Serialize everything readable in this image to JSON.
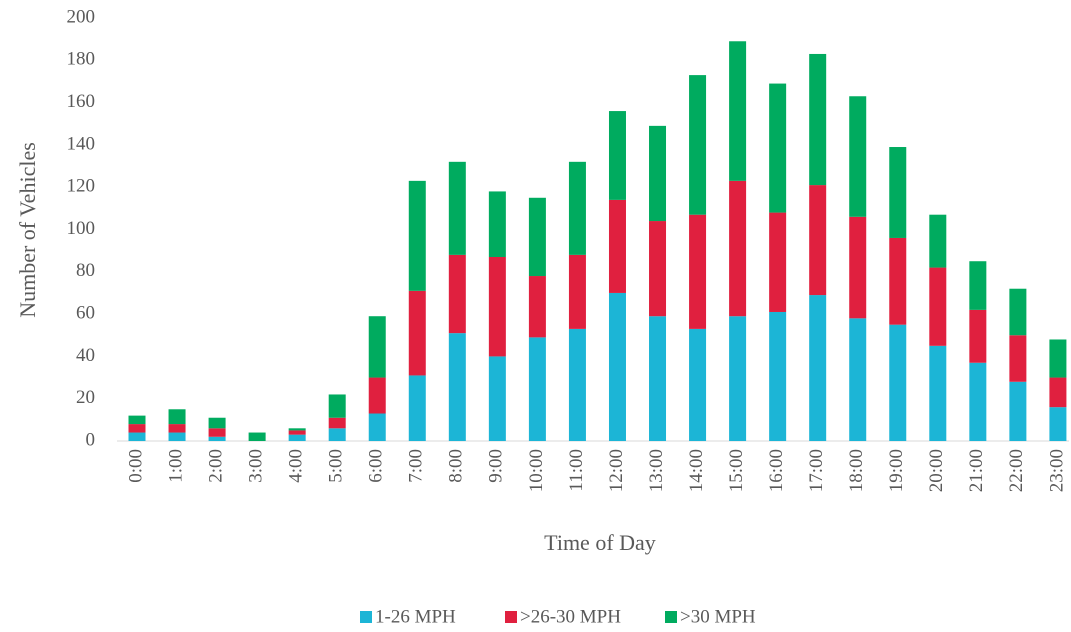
{
  "chart_data": {
    "type": "stacked_bar",
    "x_label": "Time of Day",
    "y_label": "Number of Vehicles",
    "categories": [
      "0:00",
      "1:00",
      "2:00",
      "3:00",
      "4:00",
      "5:00",
      "6:00",
      "7:00",
      "8:00",
      "9:00",
      "10:00",
      "11:00",
      "12:00",
      "13:00",
      "14:00",
      "15:00",
      "16:00",
      "17:00",
      "18:00",
      "19:00",
      "20:00",
      "21:00",
      "22:00",
      "23:00"
    ],
    "series": [
      {
        "name": "1-26 MPH",
        "color": "#1cb5d6",
        "values": [
          4,
          4,
          2,
          0,
          3,
          6,
          13,
          31,
          51,
          40,
          49,
          53,
          70,
          59,
          53,
          59,
          61,
          69,
          58,
          55,
          45,
          37,
          28,
          16
        ]
      },
      {
        "name": ">26-30 MPH",
        "color": "#e0203f",
        "values": [
          4,
          4,
          4,
          0,
          2,
          5,
          17,
          40,
          37,
          47,
          29,
          35,
          44,
          45,
          54,
          64,
          47,
          52,
          48,
          41,
          37,
          25,
          22,
          14
        ]
      },
      {
        "name": ">30 MPH",
        "color": "#00ab5f",
        "values": [
          4,
          7,
          5,
          4,
          1,
          11,
          29,
          52,
          44,
          31,
          37,
          44,
          42,
          45,
          66,
          66,
          61,
          62,
          57,
          43,
          25,
          23,
          22,
          18
        ]
      }
    ],
    "ylim": [
      0,
      200
    ],
    "yticks": [
      0,
      20,
      40,
      60,
      80,
      100,
      120,
      140,
      160,
      180,
      200
    ],
    "grid": false,
    "legend": "bottom"
  }
}
